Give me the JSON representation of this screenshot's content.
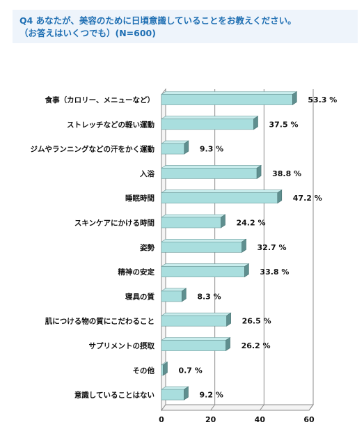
{
  "header": {
    "line1": "Q4 あなたが、美容のために日頃意識していることをお教えください。",
    "line2": "（お答えはいくつでも）(N=600)"
  },
  "chart_data": {
    "type": "bar",
    "orientation": "horizontal",
    "style": "3d",
    "bar_color": "#a9dede",
    "value_suffix": " %",
    "categories": [
      "食事（カロリー、メニューなど）",
      "ストレッチなどの軽い運動",
      "ジムやランニングなどの汗をかく運動",
      "入浴",
      "睡眠時間",
      "スキンケアにかける時間",
      "姿勢",
      "精神の安定",
      "寝具の質",
      "肌につける物の質にこだわること",
      "サプリメントの摂取",
      "その他",
      "意識していることはない"
    ],
    "values": [
      53.3,
      37.5,
      9.3,
      38.8,
      47.2,
      24.2,
      32.7,
      33.8,
      8.3,
      26.5,
      26.2,
      0.7,
      9.2
    ],
    "xlim": [
      0,
      60
    ],
    "xticks": [
      "0",
      "20",
      "40",
      "60"
    ],
    "grid": true
  }
}
